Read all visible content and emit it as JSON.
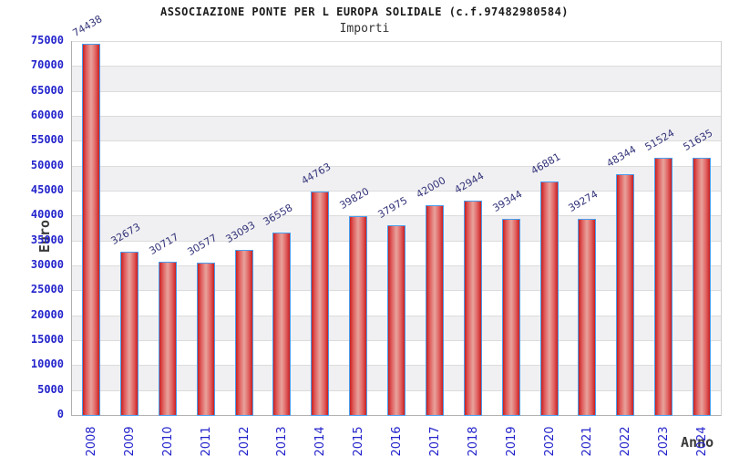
{
  "header": {
    "title": "ASSOCIAZIONE PONTE PER L EUROPA SOLIDALE (c.f.97482980584)",
    "subtitle": "Importi"
  },
  "chart_data": {
    "type": "bar",
    "title": "ASSOCIAZIONE PONTE PER L EUROPA SOLIDALE (c.f.97482980584)",
    "subtitle": "Importi",
    "xlabel": "Anno",
    "ylabel": "Euro",
    "categories": [
      "2008",
      "2009",
      "2010",
      "2011",
      "2012",
      "2013",
      "2014",
      "2015",
      "2016",
      "2017",
      "2018",
      "2019",
      "2020",
      "2021",
      "2022",
      "2023",
      "2024"
    ],
    "values": [
      74438,
      32673,
      30717,
      30577,
      33093,
      36558,
      44763,
      39820,
      37975,
      42000,
      42944,
      39344,
      46881,
      39274,
      48344,
      51524,
      51635
    ],
    "ylim": [
      0,
      75000
    ],
    "ytick_step": 5000,
    "legend": "none",
    "grid": "horizontal-bands",
    "value_labels_rotation_deg": -30,
    "xtick_rotation_deg": -90,
    "colors": {
      "bar_border": "#4a9ded",
      "bar_fill_edge": "#c92020",
      "bar_fill_center": "#e8a39c",
      "tick_label": "#2323cc",
      "value_label": "#34347a",
      "axis_title": "#3a3a3a",
      "band_gray": "#f0f0f2",
      "gridline": "#dcdcdc",
      "background": "#ffffff"
    }
  }
}
